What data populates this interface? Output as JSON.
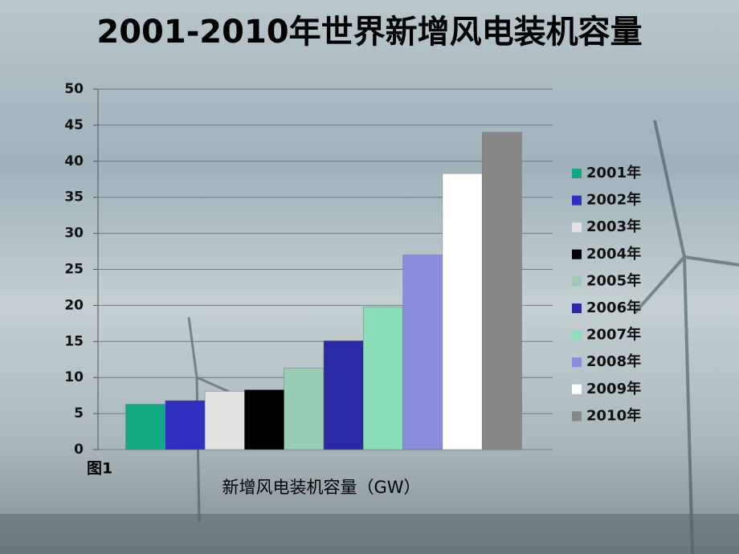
{
  "chart_data": {
    "type": "bar",
    "title": "2001-2010年世界新增风电装机容量",
    "x_label": "新增风电装机容量（GW）",
    "annotation": "图1",
    "ylim": [
      0,
      50
    ],
    "yticks": [
      0,
      5,
      10,
      15,
      20,
      25,
      30,
      35,
      40,
      45,
      50
    ],
    "grid": true,
    "legend": "right",
    "series": [
      {
        "name": "2001年",
        "color": "#12a882",
        "values": [
          6.3
        ]
      },
      {
        "name": "2002年",
        "color": "#2e2ec0",
        "values": [
          6.8
        ]
      },
      {
        "name": "2003年",
        "color": "#e2e2e2",
        "values": [
          8.1
        ]
      },
      {
        "name": "2004年",
        "color": "#000000",
        "values": [
          8.3
        ]
      },
      {
        "name": "2005年",
        "color": "#99ccb4",
        "values": [
          11.3
        ]
      },
      {
        "name": "2006年",
        "color": "#2a2aa6",
        "values": [
          15.1
        ]
      },
      {
        "name": "2007年",
        "color": "#88dfba",
        "values": [
          19.8
        ]
      },
      {
        "name": "2008年",
        "color": "#8c8cdc",
        "values": [
          27.0
        ]
      },
      {
        "name": "2009年",
        "color": "#ffffff",
        "values": [
          38.3
        ]
      },
      {
        "name": "2010年",
        "color": "#888888",
        "values": [
          44.0
        ]
      }
    ]
  }
}
